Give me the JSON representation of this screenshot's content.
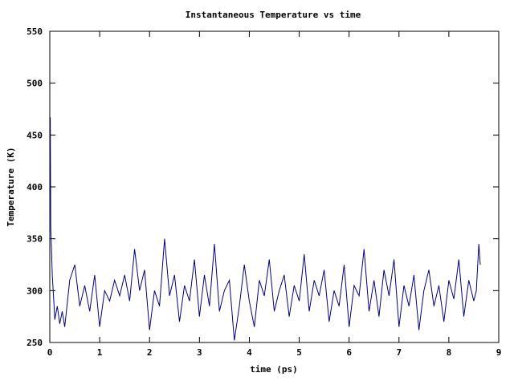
{
  "chart_data": {
    "type": "line",
    "title": "Instantaneous Temperature vs time",
    "xlabel": "time (ps)",
    "ylabel": "Temperature (K)",
    "xlim": [
      0,
      9
    ],
    "ylim": [
      250,
      550
    ],
    "xticks": [
      0,
      1,
      2,
      3,
      4,
      5,
      6,
      7,
      8,
      9
    ],
    "yticks": [
      250,
      300,
      350,
      400,
      450,
      500,
      550
    ],
    "grid": false,
    "legend": "none",
    "line_color": "#000080",
    "series": [
      {
        "x": [
          0.0,
          0.01,
          0.02,
          0.03,
          0.05,
          0.08,
          0.1,
          0.15,
          0.2,
          0.25,
          0.3,
          0.4,
          0.5,
          0.6,
          0.7,
          0.8,
          0.9,
          1.0,
          1.1,
          1.2,
          1.3,
          1.4,
          1.5,
          1.6,
          1.7,
          1.8,
          1.9,
          2.0,
          2.1,
          2.2,
          2.3,
          2.4,
          2.5,
          2.6,
          2.7,
          2.8,
          2.9,
          3.0,
          3.1,
          3.2,
          3.3,
          3.4,
          3.5,
          3.6,
          3.7,
          3.8,
          3.9,
          4.0,
          4.1,
          4.2,
          4.3,
          4.4,
          4.5,
          4.6,
          4.7,
          4.8,
          4.9,
          5.0,
          5.1,
          5.2,
          5.3,
          5.4,
          5.5,
          5.6,
          5.7,
          5.8,
          5.9,
          6.0,
          6.1,
          6.2,
          6.3,
          6.4,
          6.5,
          6.6,
          6.7,
          6.8,
          6.9,
          7.0,
          7.1,
          7.2,
          7.3,
          7.4,
          7.5,
          7.6,
          7.7,
          7.8,
          7.9,
          8.0,
          8.1,
          8.2,
          8.3,
          8.4,
          8.5,
          8.55,
          8.6,
          8.63
        ],
        "y": [
          400,
          467,
          360,
          345,
          315,
          290,
          272,
          285,
          268,
          280,
          265,
          310,
          325,
          285,
          305,
          280,
          315,
          265,
          300,
          290,
          310,
          295,
          315,
          290,
          340,
          300,
          320,
          262,
          300,
          285,
          350,
          295,
          315,
          270,
          305,
          290,
          330,
          275,
          315,
          285,
          345,
          280,
          300,
          310,
          252,
          285,
          325,
          290,
          265,
          310,
          295,
          330,
          280,
          300,
          315,
          275,
          305,
          290,
          335,
          280,
          310,
          295,
          320,
          270,
          300,
          285,
          325,
          265,
          305,
          295,
          340,
          280,
          310,
          275,
          320,
          295,
          330,
          265,
          305,
          285,
          315,
          262,
          300,
          320,
          285,
          305,
          270,
          310,
          292,
          330,
          275,
          310,
          290,
          300,
          345,
          325
        ]
      }
    ]
  }
}
